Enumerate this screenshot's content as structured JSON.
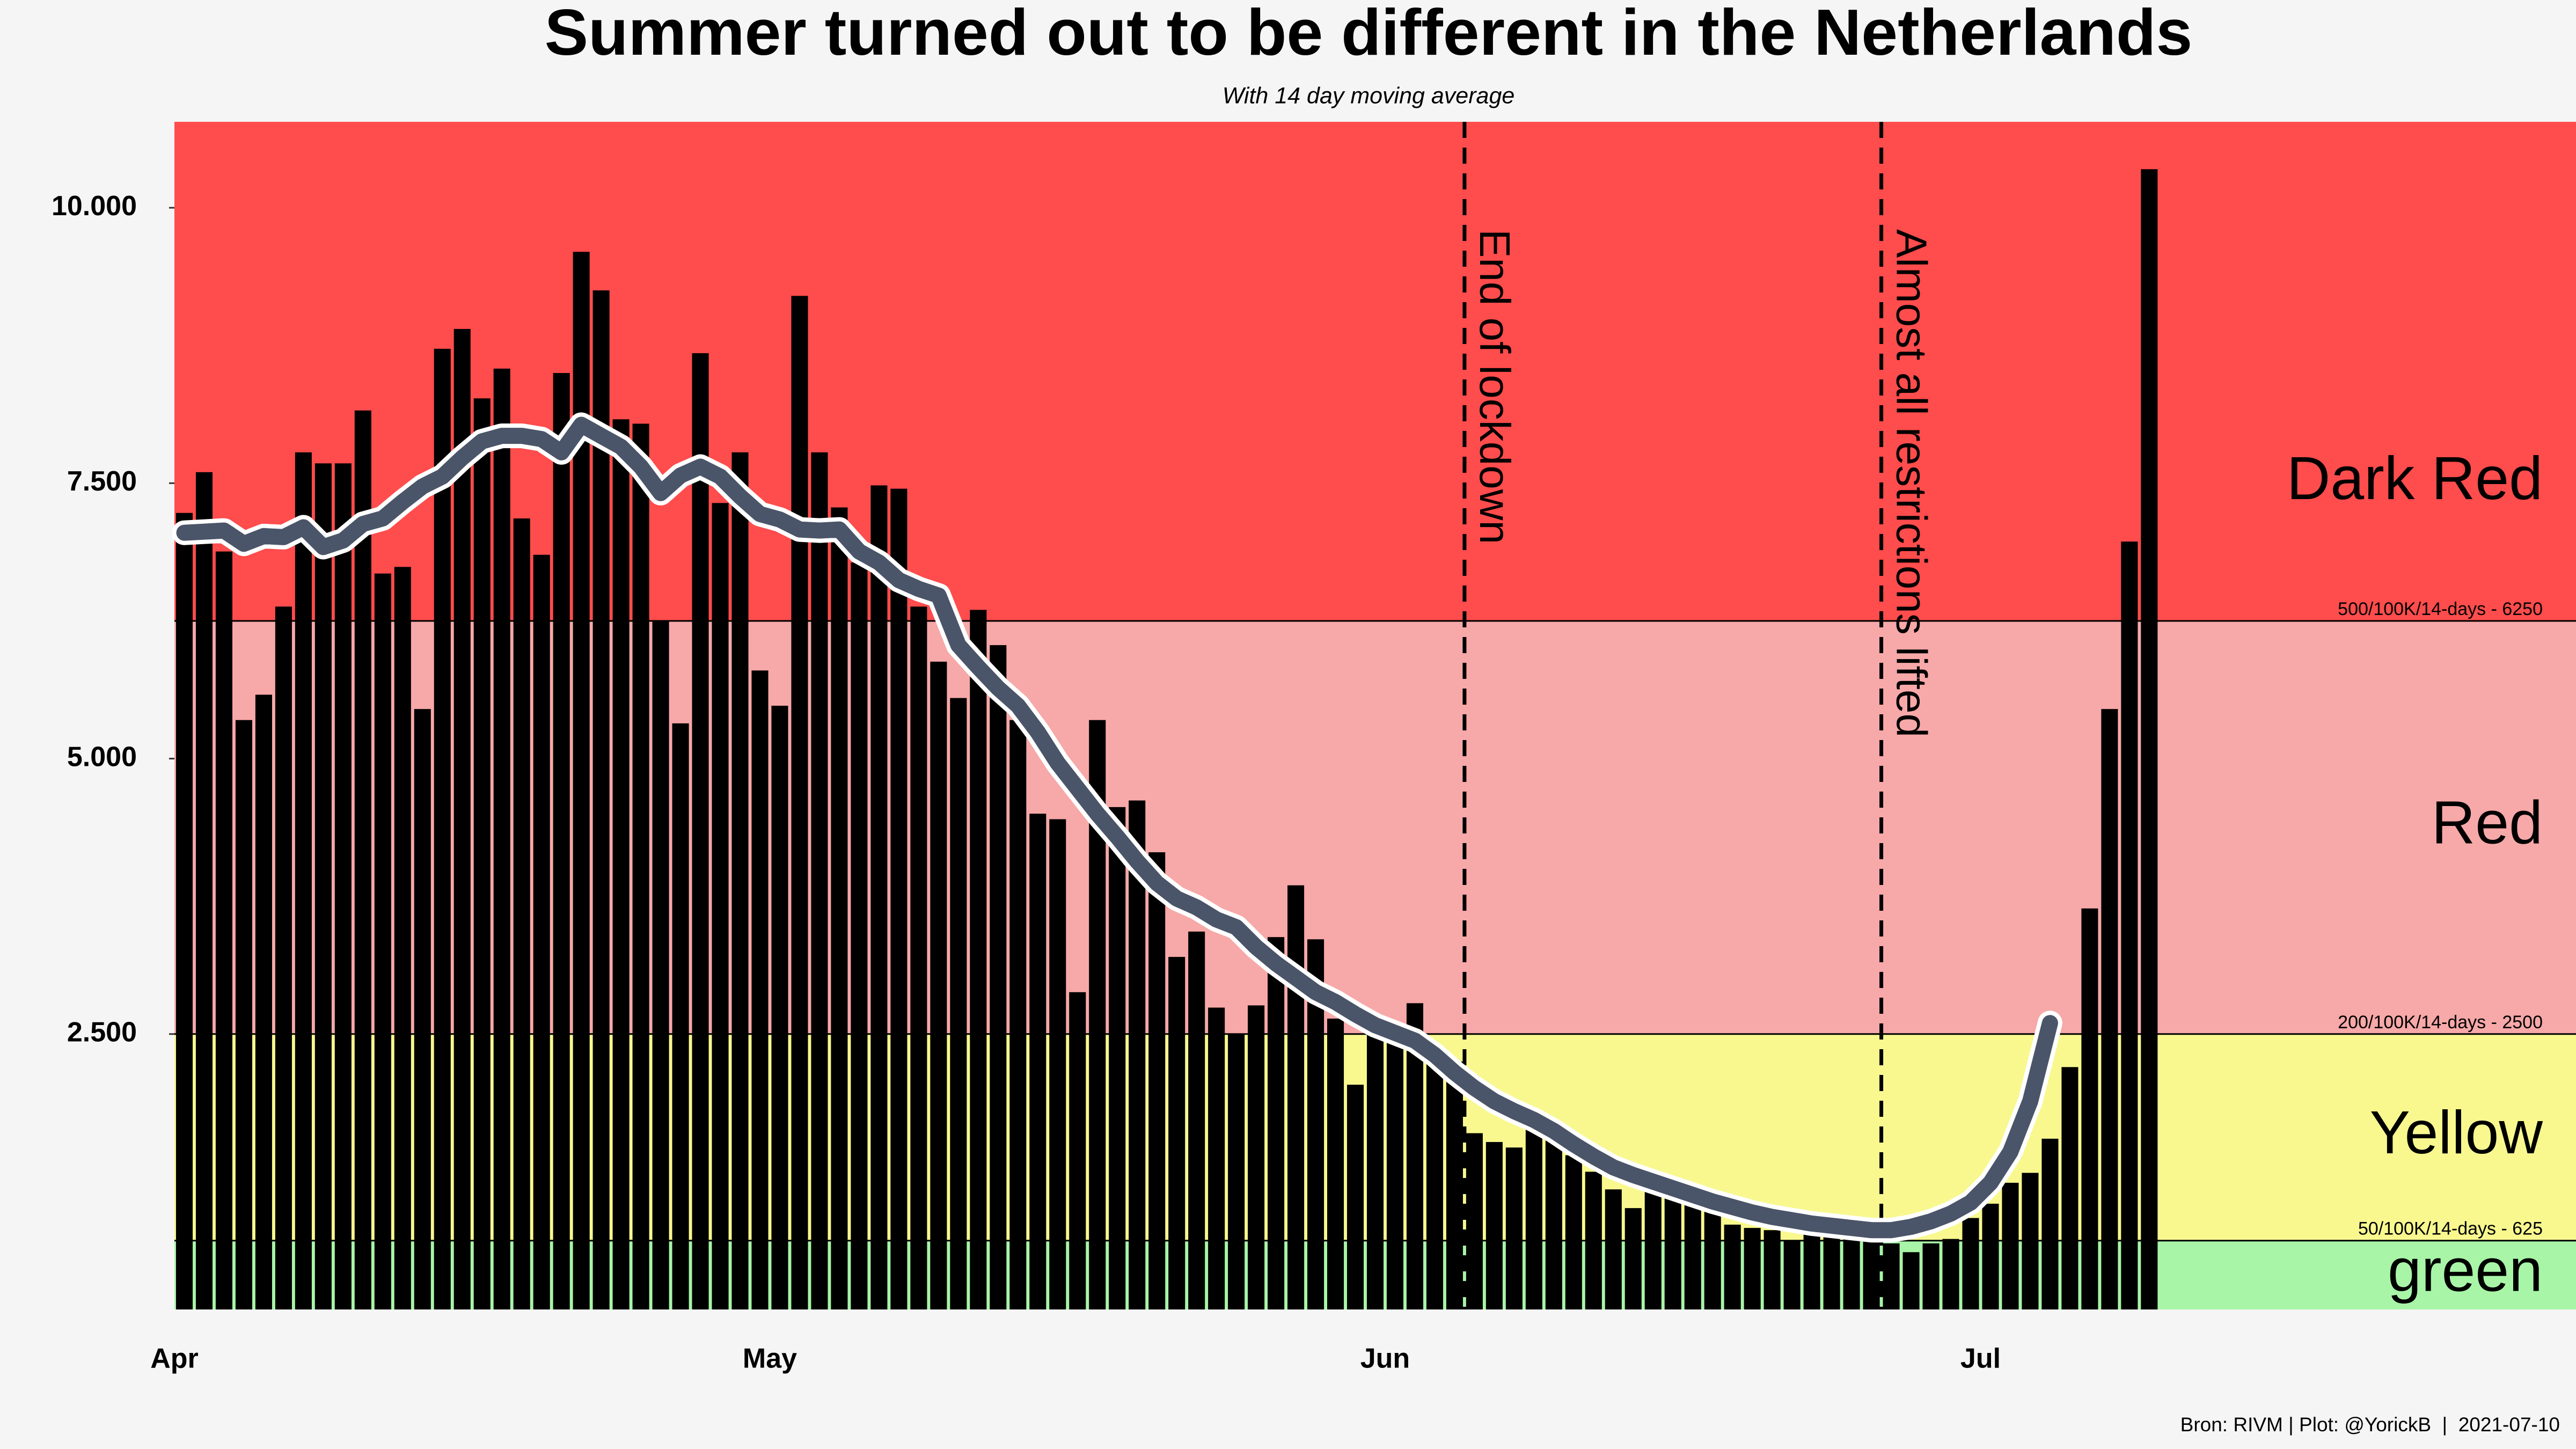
{
  "chart_data": {
    "type": "bar",
    "title": "Summer turned out to be different in the Netherlands",
    "subtitle": "With 14 day moving average",
    "source": "Bron: RIVM | Plot: @YorickB  |  2021-07-10",
    "categories": [
      "Apr",
      null,
      null,
      null,
      null,
      null,
      null,
      null,
      null,
      null,
      null,
      null,
      null,
      null,
      null,
      null,
      null,
      null,
      null,
      null,
      null,
      null,
      null,
      null,
      null,
      null,
      null,
      null,
      null,
      null,
      "May",
      null,
      null,
      null,
      null,
      null,
      null,
      null,
      null,
      null,
      null,
      null,
      null,
      null,
      null,
      null,
      null,
      null,
      null,
      null,
      null,
      null,
      null,
      null,
      null,
      null,
      null,
      null,
      null,
      null,
      null,
      "Jun",
      null,
      null,
      null,
      null,
      null,
      null,
      null,
      null,
      null,
      null,
      null,
      null,
      null,
      null,
      null,
      null,
      null,
      null,
      null,
      null,
      null,
      null,
      null,
      null,
      null,
      null,
      null,
      null,
      null,
      "Jul",
      null,
      null,
      null,
      null,
      null,
      null,
      null,
      null,
      null,
      null,
      null,
      null,
      null,
      null,
      null,
      null,
      null,
      null,
      null,
      null,
      null,
      null,
      null,
      null,
      null,
      null,
      null,
      null,
      null
    ],
    "values": [
      7230,
      7600,
      6880,
      5350,
      5580,
      6380,
      7780,
      7680,
      7680,
      8160,
      6680,
      6740,
      5450,
      8720,
      8900,
      8270,
      8540,
      7180,
      6850,
      8500,
      9600,
      9250,
      8080,
      8040,
      6250,
      5320,
      8680,
      7320,
      7780,
      5800,
      5480,
      9200,
      7780,
      7280,
      6780,
      7480,
      7450,
      6380,
      5880,
      5550,
      6350,
      6030,
      5350,
      4500,
      4450,
      2880,
      5350,
      4560,
      4620,
      4150,
      3200,
      3430,
      2740,
      2500,
      2760,
      3380,
      3850,
      3360,
      2640,
      2040,
      2530,
      2560,
      2780,
      2390,
      2250,
      1600,
      1520,
      1470,
      1650,
      1560,
      1400,
      1250,
      1090,
      920,
      1100,
      1010,
      1090,
      900,
      770,
      740,
      720,
      630,
      710,
      670,
      660,
      650,
      600,
      520,
      600,
      640,
      830,
      960,
      1150,
      1240,
      1550,
      2200,
      3640,
      5450,
      6970,
      10350,
      null,
      null,
      null,
      null,
      null,
      null,
      null,
      null,
      null,
      null,
      null,
      null,
      null,
      null,
      null,
      null,
      null,
      null,
      null,
      null,
      null
    ],
    "color": "#000000",
    "moving_average": {
      "color": "#4b5569",
      "values": [
        7050,
        7060,
        7070,
        6950,
        7020,
        7010,
        7100,
        6920,
        6980,
        7130,
        7180,
        7330,
        7470,
        7560,
        7730,
        7880,
        7930,
        7930,
        7900,
        7780,
        8030,
        7930,
        7830,
        7650,
        7410,
        7570,
        7650,
        7560,
        7380,
        7220,
        7170,
        7080,
        7070,
        7080,
        6880,
        6780,
        6620,
        6540,
        6480,
        6030,
        5830,
        5640,
        5480,
        5240,
        4960,
        4730,
        4500,
        4290,
        4070,
        3870,
        3730,
        3650,
        3540,
        3470,
        3290,
        3140,
        3010,
        2880,
        2790,
        2680,
        2580,
        2510,
        2440,
        2310,
        2150,
        2010,
        1890,
        1800,
        1720,
        1620,
        1500,
        1390,
        1290,
        1220,
        1160,
        1100,
        1040,
        980,
        930,
        880,
        840,
        810,
        780,
        760,
        740,
        720,
        720,
        750,
        800,
        870,
        970,
        1150,
        1430,
        1890,
        2600,
        null,
        null,
        null,
        null,
        null,
        null,
        null,
        null,
        null,
        null,
        null,
        null,
        null,
        null,
        null,
        null,
        null,
        null,
        null,
        null,
        null,
        null,
        null,
        null,
        null,
        null
      ]
    },
    "ylim": [
      0,
      10780
    ],
    "yticks": [
      {
        "value": 2500,
        "label": "2.500"
      },
      {
        "value": 5000,
        "label": "5.000"
      },
      {
        "value": 7500,
        "label": "7.500"
      },
      {
        "value": 10000,
        "label": "10.000"
      }
    ],
    "zones": [
      {
        "name": "green",
        "from": 0,
        "color": "#a8f5a8"
      },
      {
        "name": "Yellow",
        "from": 625,
        "label": "50/100K/14-days - 625",
        "color": "#f8f88f"
      },
      {
        "name": "Red",
        "from": 2500,
        "label": "200/100K/14-days - 2500",
        "color": "#f7a8a8"
      },
      {
        "name": "Dark Red",
        "from": 6250,
        "label": "500/100K/14-days - 6250",
        "color": "#ff4c4c"
      }
    ],
    "annotations": [
      {
        "text": "End of lockdown",
        "x": 65
      },
      {
        "text": "Almost all restrictions lifted",
        "x": 86
      }
    ]
  }
}
